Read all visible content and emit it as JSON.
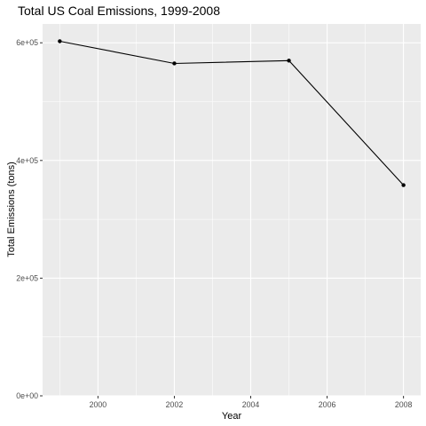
{
  "chart_data": {
    "type": "line",
    "title": "Total US Coal Emissions, 1999-2008",
    "xlabel": "Year",
    "ylabel": "Total Emissions (tons)",
    "x": [
      1999,
      2002,
      2005,
      2008
    ],
    "series": [
      {
        "values": [
          602600,
          564900,
          569700,
          358100
        ]
      }
    ],
    "xlim": [
      1998.55,
      2008.45
    ],
    "ylim": [
      0,
      632000
    ],
    "xticks": [
      2000,
      2002,
      2004,
      2006,
      2008
    ],
    "xtick_labels": [
      "2000",
      "2002",
      "2004",
      "2006",
      "2008"
    ],
    "yticks": [
      0,
      200000,
      400000,
      600000
    ],
    "ytick_labels": [
      "0e+00",
      "2e+05",
      "4e+05",
      "6e+05"
    ],
    "grid": true,
    "colors": {
      "panel": "#ebebeb",
      "grid_major": "#ffffff",
      "line": "#000000",
      "tick_text": "#4d4d4d"
    }
  }
}
